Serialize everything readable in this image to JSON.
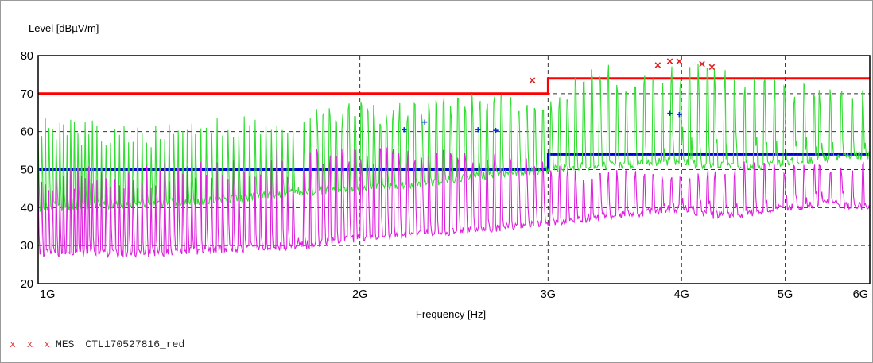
{
  "chart_data": {
    "type": "line",
    "ylabel": "Level [dBµV/m]",
    "xlabel": "Frequency [Hz]",
    "x_scale": "log",
    "xlim": [
      1000000000,
      6000000000
    ],
    "ylim": [
      20,
      80
    ],
    "yticks": [
      20,
      30,
      40,
      50,
      60,
      70,
      80
    ],
    "xticks": [
      {
        "value": 1000000000,
        "label": "1G"
      },
      {
        "value": 2000000000,
        "label": "2G"
      },
      {
        "value": 3000000000,
        "label": "3G"
      },
      {
        "value": 4000000000,
        "label": "4G"
      },
      {
        "value": 5000000000,
        "label": "5G"
      },
      {
        "value": 6000000000,
        "label": "6G"
      }
    ],
    "grid": "dashed",
    "series": [
      {
        "color": "#ff0000",
        "style": "step",
        "x": [
          1000000000,
          3000000000,
          3000000000,
          6000000000
        ],
        "values": [
          70,
          70,
          74,
          74
        ]
      },
      {
        "color": "#0000dd",
        "style": "step",
        "x": [
          1000000000,
          3000000000,
          3000000000,
          6000000000
        ],
        "values": [
          50,
          50,
          54,
          54
        ]
      },
      {
        "color": "#33dd33",
        "style": "spectrum",
        "x": [
          1000000000,
          1250000000,
          1500000000,
          1750000000,
          2000000000,
          2250000000,
          2500000000,
          2750000000,
          3000000000,
          3250000000,
          3500000000,
          3750000000,
          4000000000,
          4250000000,
          4500000000,
          4750000000,
          5000000000,
          5500000000,
          6000000000
        ],
        "values": [
          40,
          41,
          42,
          44,
          45,
          46,
          48,
          49,
          50,
          51,
          51,
          52,
          52,
          51,
          51,
          51,
          52,
          53,
          54
        ],
        "peaks": [
          64,
          62,
          64,
          66,
          68,
          68,
          70,
          70,
          69,
          78,
          78,
          76,
          79,
          77,
          76,
          75,
          73,
          72,
          71
        ]
      },
      {
        "color": "#dd22dd",
        "style": "spectrum",
        "x": [
          1000000000,
          1250000000,
          1500000000,
          1750000000,
          2000000000,
          2250000000,
          2500000000,
          2750000000,
          3000000000,
          3250000000,
          3500000000,
          3750000000,
          4000000000,
          4250000000,
          4500000000,
          4750000000,
          5000000000,
          5500000000,
          6000000000
        ],
        "values": [
          28,
          28,
          29,
          30,
          32,
          33,
          34,
          35,
          36,
          37,
          38,
          39,
          40,
          38,
          38,
          39,
          40,
          41,
          40
        ],
        "peaks": [
          50,
          52,
          54,
          56,
          56,
          56,
          55,
          54,
          52,
          50,
          50,
          50,
          49,
          51,
          52,
          53,
          52,
          51,
          52
        ]
      }
    ],
    "markers_x": {
      "color": "#dd2222",
      "points": [
        {
          "x": 2900000000,
          "y": 73.5
        },
        {
          "x": 3800000000,
          "y": 77.5
        },
        {
          "x": 3900000000,
          "y": 78.5
        },
        {
          "x": 3980000000,
          "y": 78.5
        },
        {
          "x": 4180000000,
          "y": 77.8
        },
        {
          "x": 4270000000,
          "y": 77
        }
      ]
    },
    "markers_plus": {
      "color": "#0033cc",
      "points": [
        {
          "x": 2200000000,
          "y": 60.5
        },
        {
          "x": 2300000000,
          "y": 62.5
        },
        {
          "x": 2580000000,
          "y": 60.5
        },
        {
          "x": 2680000000,
          "y": 60.3
        },
        {
          "x": 3900000000,
          "y": 64.8
        },
        {
          "x": 3980000000,
          "y": 64.5
        }
      ]
    }
  },
  "legend": {
    "marker": "x x x",
    "label": "MES",
    "name": "CTL170527816_red"
  }
}
